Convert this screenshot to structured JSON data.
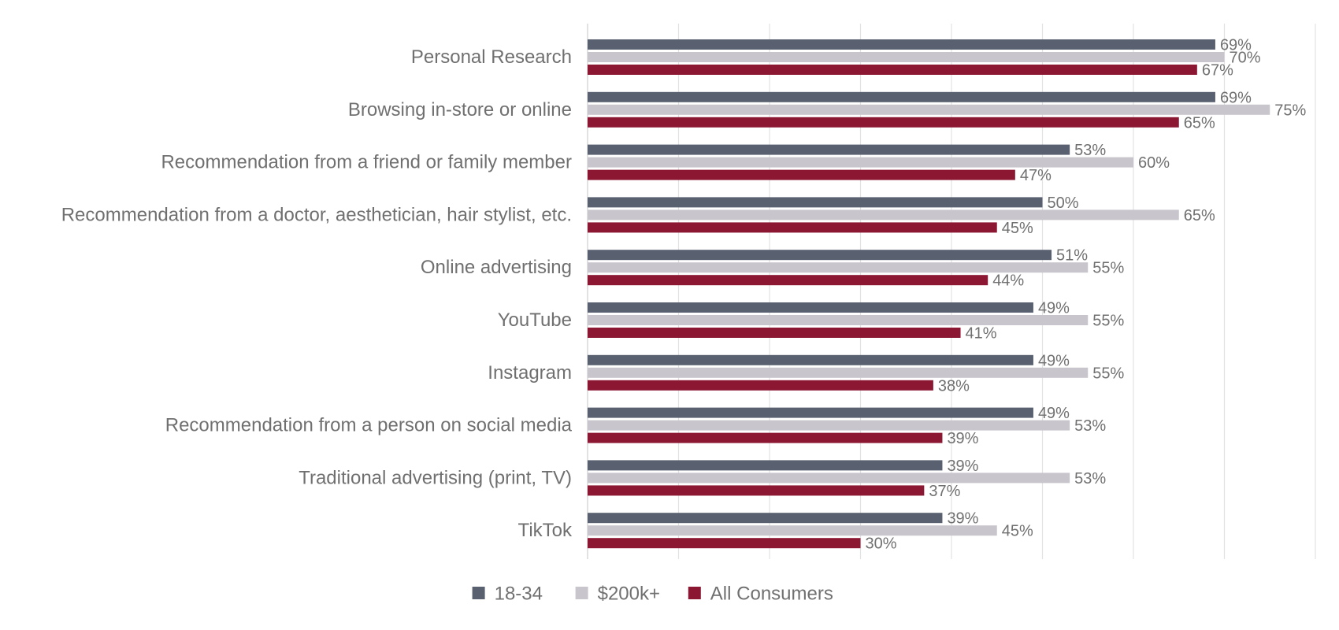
{
  "chart_data": {
    "type": "bar",
    "orientation": "horizontal",
    "title": "",
    "xlabel": "",
    "ylabel": "",
    "xlim": [
      0,
      80
    ],
    "grid": true,
    "legend_position": "bottom",
    "categories": [
      "Personal Research",
      "Browsing in-store or online",
      "Recommendation from a friend or family member",
      "Recommendation from a doctor, aesthetician, hair stylist, etc.",
      "Online advertising",
      "YouTube",
      "Instagram",
      "Recommendation from a person on social media",
      "Traditional advertising (print, TV)",
      "TikTok"
    ],
    "series": [
      {
        "name": "18-34",
        "color": "#59606f",
        "values": [
          69,
          69,
          53,
          50,
          51,
          49,
          49,
          49,
          39,
          39
        ],
        "labels": [
          "69%",
          "69%",
          "53%",
          "50%",
          "51%",
          "49%",
          "49%",
          "49%",
          "39%",
          "39%"
        ]
      },
      {
        "name": "$200k+",
        "color": "#c9c5cc",
        "values": [
          70,
          75,
          60,
          65,
          55,
          55,
          55,
          53,
          53,
          45
        ],
        "labels": [
          "70%",
          "75%",
          "60%",
          "65%",
          "55%",
          "55%",
          "55%",
          "53%",
          "53%",
          "45%"
        ]
      },
      {
        "name": "All Consumers",
        "color": "#8b1733",
        "values": [
          67,
          65,
          47,
          45,
          44,
          41,
          38,
          39,
          37,
          30
        ],
        "labels": [
          "67%",
          "65%",
          "47%",
          "45%",
          "44%",
          "41%",
          "38%",
          "39%",
          "37%",
          "30%"
        ]
      }
    ]
  }
}
